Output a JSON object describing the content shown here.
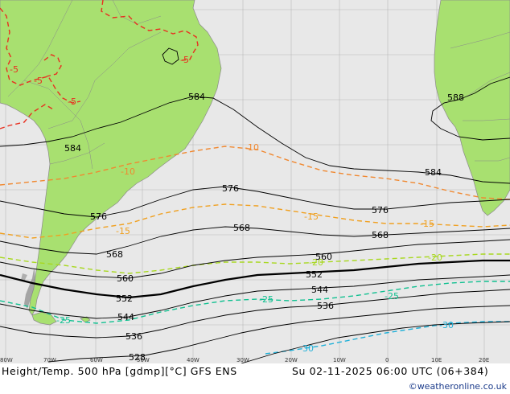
{
  "footer": {
    "title": "Height/Temp. 500 hPa [gdmp][°C] GFS ENS",
    "date": "Su 02-11-2025 06:00 UTC (06+384)",
    "credit": "©weatheronline.co.uk"
  },
  "colors": {
    "ocean": "#e8e8e8",
    "land": "#a8e070",
    "height_contour": "#000000",
    "temp_warm": "#e83020",
    "temp_minus10": "#f08830",
    "temp_minus15": "#f0a020",
    "temp_minus20": "#a8d820",
    "temp_minus25": "#10c090",
    "temp_minus30": "#20b0d8"
  },
  "longitude_ticks": [
    "80W",
    "70W",
    "60W",
    "50W",
    "40W",
    "30W",
    "20W",
    "10W",
    "0",
    "10E",
    "20E"
  ],
  "height_labels": [
    {
      "text": "584"
    },
    {
      "text": "584"
    },
    {
      "text": "588"
    },
    {
      "text": "584"
    },
    {
      "text": "576"
    },
    {
      "text": "576"
    },
    {
      "text": "576"
    },
    {
      "text": "568"
    },
    {
      "text": "568"
    },
    {
      "text": "568"
    },
    {
      "text": "560"
    },
    {
      "text": "560"
    },
    {
      "text": "552"
    },
    {
      "text": "552"
    },
    {
      "text": "544"
    },
    {
      "text": "544"
    },
    {
      "text": "536"
    },
    {
      "text": "536"
    },
    {
      "text": "528"
    }
  ],
  "temp_labels": [
    {
      "text": "-5"
    },
    {
      "text": "-5"
    },
    {
      "text": "-5"
    },
    {
      "text": "-5"
    },
    {
      "text": "-10"
    },
    {
      "text": "-10"
    },
    {
      "text": "-15"
    },
    {
      "text": "-15"
    },
    {
      "text": "-15"
    },
    {
      "text": "-20"
    },
    {
      "text": "-20"
    },
    {
      "text": "-25"
    },
    {
      "text": "-25"
    },
    {
      "text": "-25"
    },
    {
      "text": "-30"
    },
    {
      "text": "-30"
    }
  ]
}
